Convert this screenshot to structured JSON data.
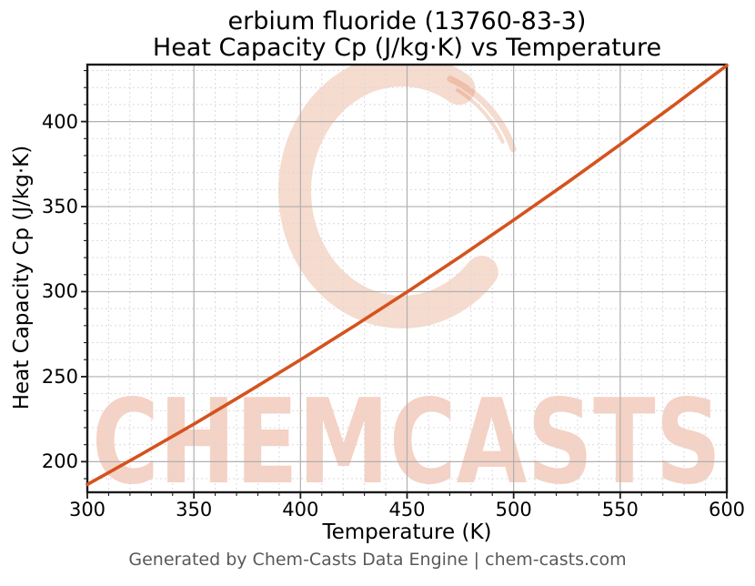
{
  "title": {
    "line1": "erbium fluoride (13760-83-3)",
    "line2": "Heat Capacity Cp (J/kg·K) vs Temperature"
  },
  "footer": {
    "text": "Generated by Chem-Casts Data Engine | chem-casts.com"
  },
  "watermark": {
    "logo_glyph": "C",
    "text": "CHEMCASTS",
    "color": "#d4531e",
    "text_opacity": 0.26,
    "logo_opacity": 0.21
  },
  "chart_data": {
    "type": "line",
    "title": "erbium fluoride (13760-83-3) — Heat Capacity Cp (J/kg·K) vs Temperature",
    "xlabel": "Temperature (K)",
    "ylabel": "Heat Capacity Cp (J/kg·K)",
    "xlim": [
      300,
      600
    ],
    "ylim": [
      182,
      433.5
    ],
    "x_major_ticks": [
      300,
      350,
      400,
      450,
      500,
      550,
      600
    ],
    "y_major_ticks": [
      200,
      250,
      300,
      350,
      400
    ],
    "x_minor_step": 10,
    "y_minor_step": 10,
    "grid": "major solid gray, minor dashed light gray",
    "legend": "none",
    "series": [
      {
        "name": "Heat Capacity Cp",
        "color": "#d4531e",
        "x": [
          300,
          325,
          350,
          375,
          400,
          425,
          450,
          475,
          500,
          525,
          550,
          575,
          600
        ],
        "y": [
          186.6,
          204.1,
          222.1,
          240.8,
          259.9,
          279.6,
          299.8,
          320.6,
          342.1,
          364.0,
          386.5,
          409.5,
          433.0
        ]
      }
    ]
  },
  "colors": {
    "line": "#d4531e",
    "major_grid": "#b0b0b0",
    "minor_grid": "#d9d9d9",
    "spine": "#1a1a1a",
    "footer_text": "#595959",
    "background": "#ffffff"
  }
}
